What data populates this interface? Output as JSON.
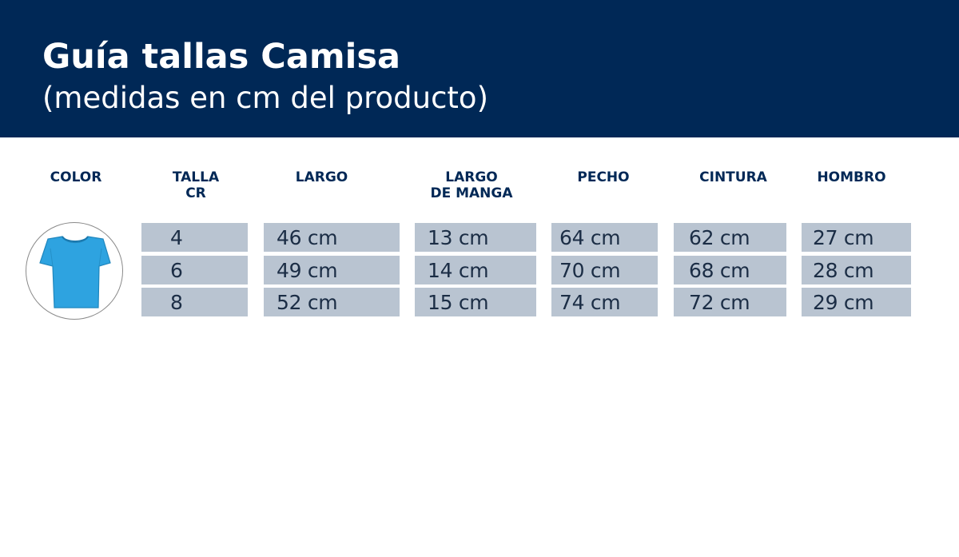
{
  "header": {
    "title": "Guía tallas Camisa",
    "subtitle": "(medidas en cm del producto)"
  },
  "columns": [
    "COLOR",
    "TALLA\nCR",
    "LARGO",
    "LARGO\nDE MANGA",
    "PECHO",
    "CINTURA",
    "HOMBRO"
  ],
  "rows": [
    [
      "4",
      "46 cm",
      "13 cm",
      "64 cm",
      "62 cm",
      "27 cm"
    ],
    [
      "6",
      "49 cm",
      "14 cm",
      "70 cm",
      "68 cm",
      "28 cm"
    ],
    [
      "8",
      "52 cm",
      "15 cm",
      "74 cm",
      "72 cm",
      "29 cm"
    ]
  ],
  "colors": {
    "header_bg": "#002856",
    "cell_bg": "#b9c4d1",
    "shirt": "#2ea3e0"
  },
  "product_icon": "tshirt-icon"
}
